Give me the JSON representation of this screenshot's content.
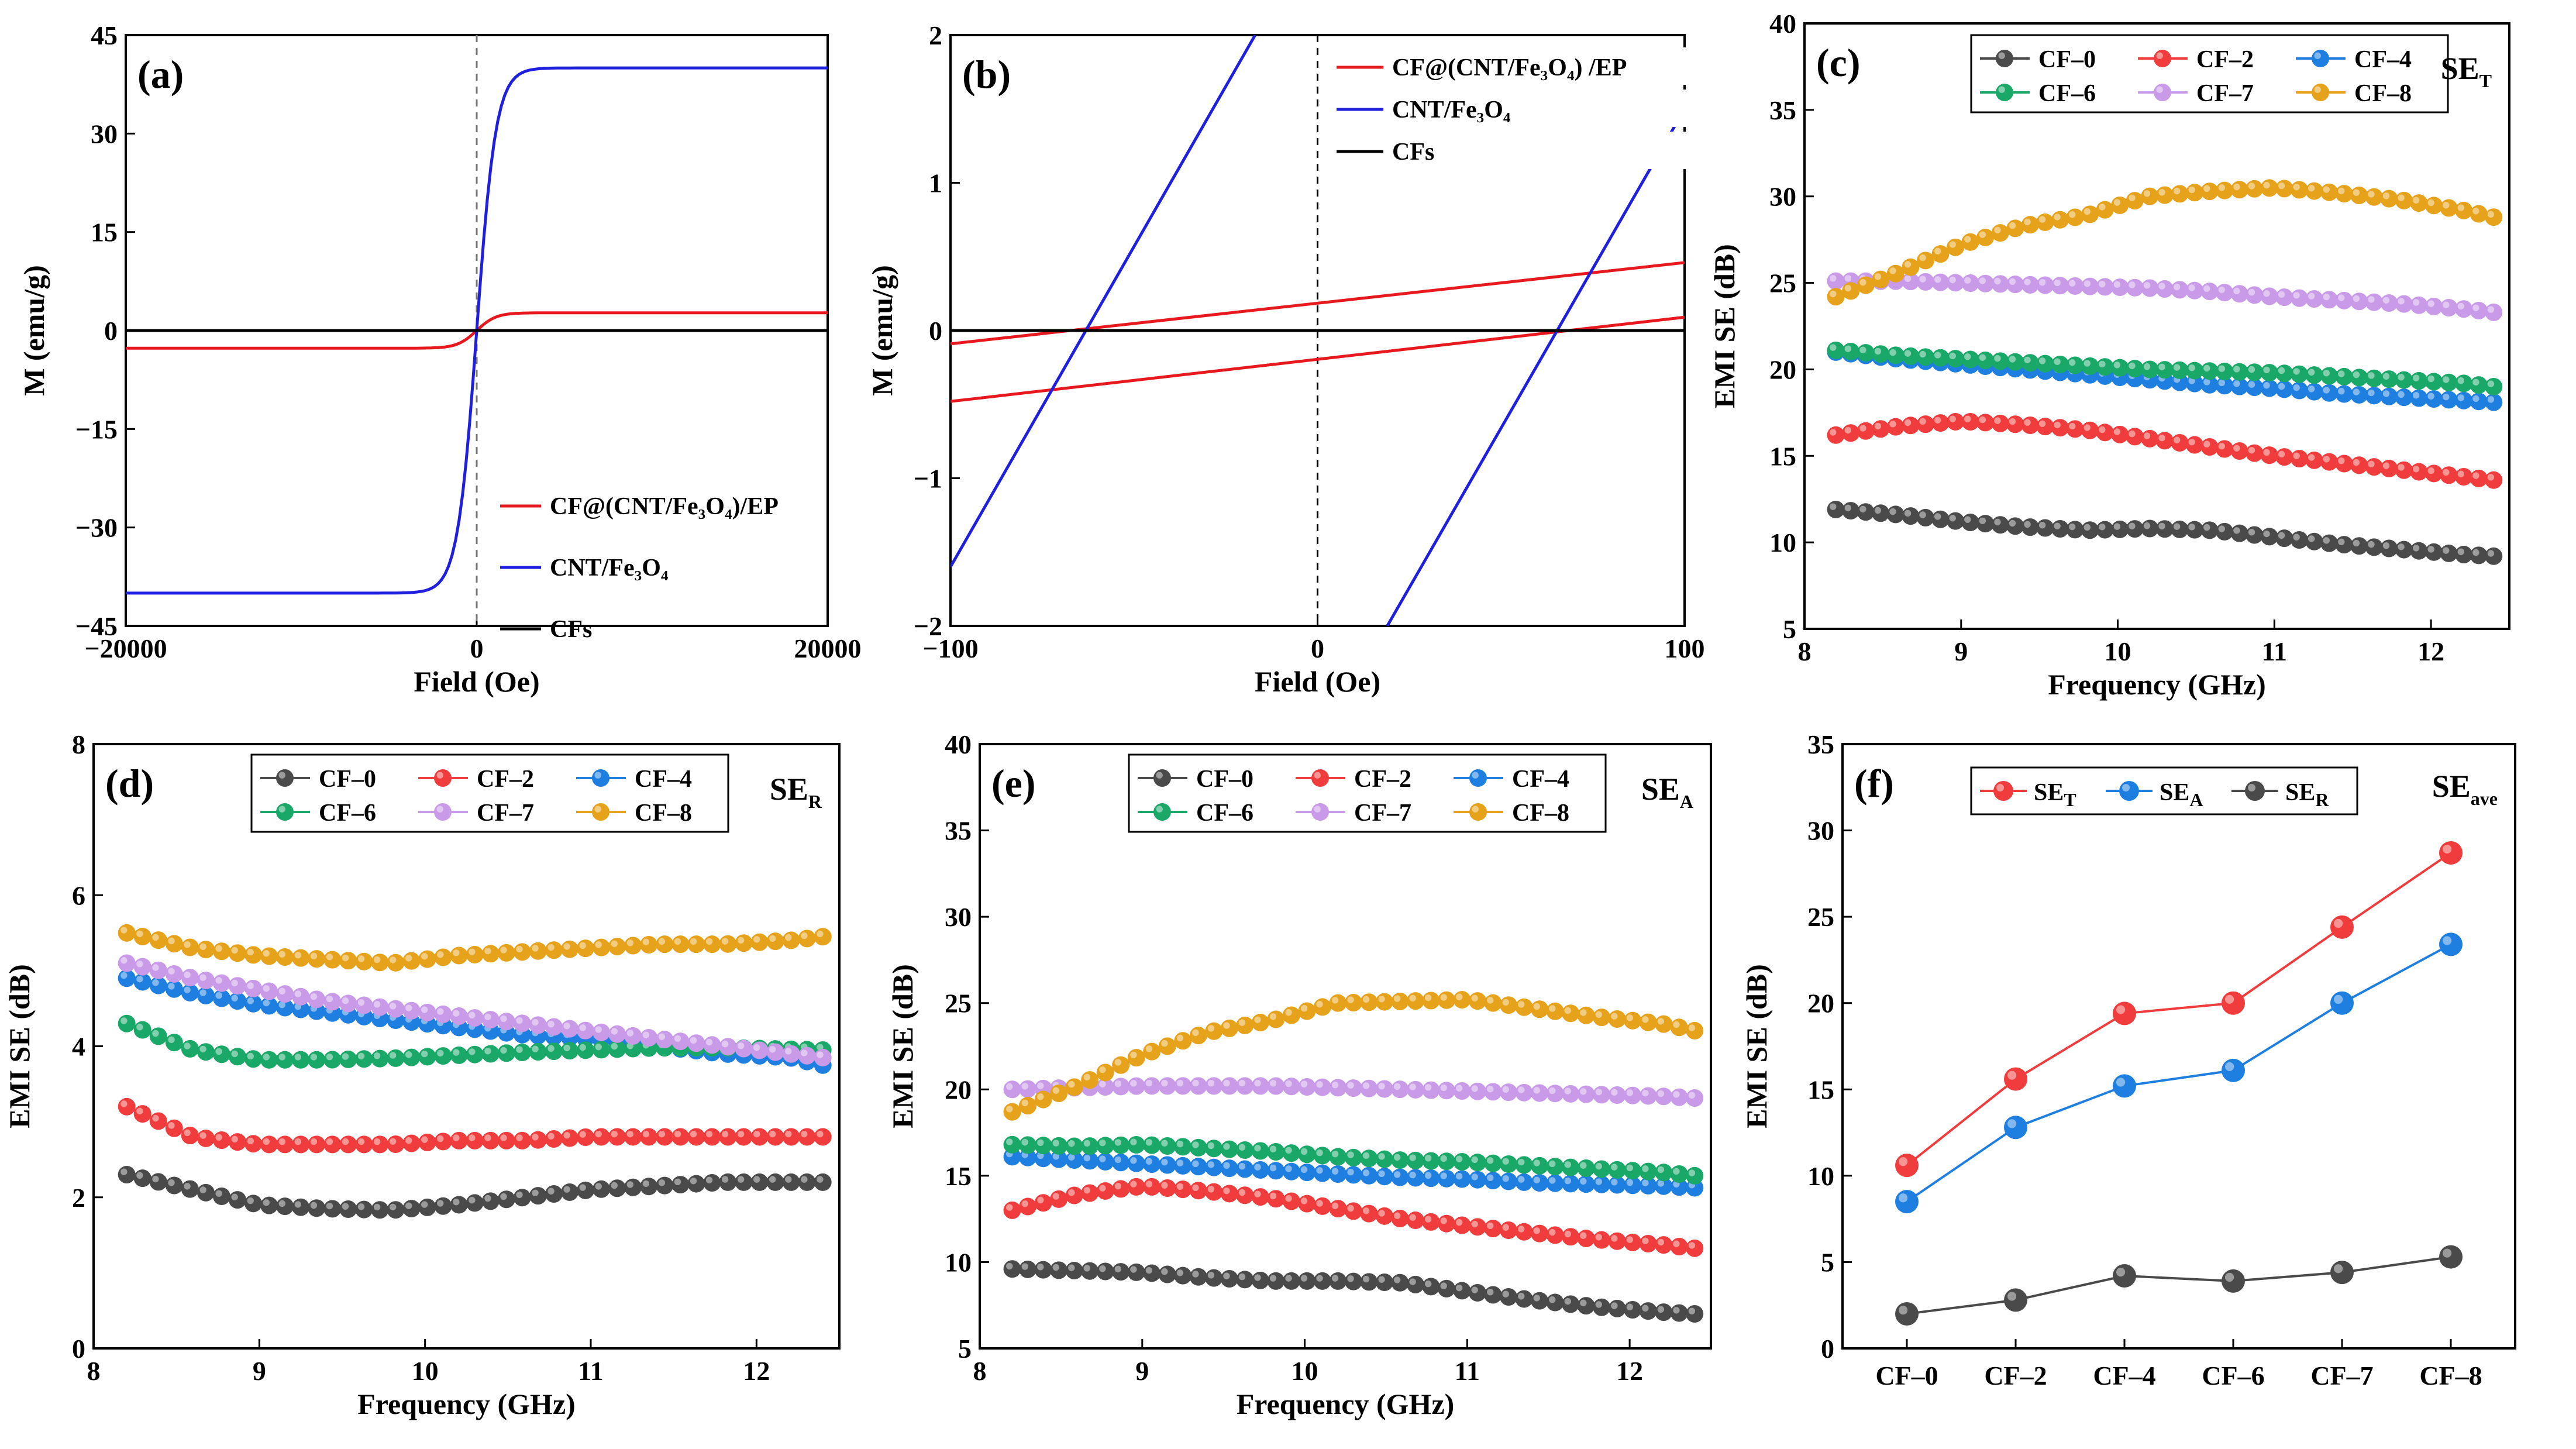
{
  "chart_data": [
    {
      "id": "a",
      "type": "line",
      "label": "(a)",
      "xlabel": "Field (Oe)",
      "ylabel": "M (emu/g)",
      "xlim": [
        -20000,
        20000
      ],
      "ylim": [
        -45,
        45
      ],
      "xticks": [
        -20000,
        0,
        20000
      ],
      "xticklabels": [
        "−20000",
        "0",
        "20000"
      ],
      "yticks": [
        -45,
        -30,
        -15,
        0,
        15,
        30,
        45
      ],
      "yticklabels": [
        "−45",
        "−30",
        "−15",
        "0",
        "15",
        "30",
        "45"
      ],
      "legend": [
        "CF@(CNT/Fe₃O₄)/EP",
        "CNT/Fe₃O₄",
        "CFs"
      ],
      "series": [
        {
          "name": "CF@(CNT/Fe3O4)/EP",
          "color": "#e8191e",
          "Ms": 2.7,
          "scale": 1100
        },
        {
          "name": "CNT/Fe3O4",
          "color": "#1f1fe0",
          "Ms": 40,
          "scale": 1100
        },
        {
          "name": "CFs",
          "color": "#000000",
          "Ms": 0,
          "scale": 1100
        }
      ]
    },
    {
      "id": "b",
      "type": "line",
      "label": "(b)",
      "xlabel": "Field (Oe)",
      "ylabel": "M (emu/g)",
      "xlim": [
        -100,
        100
      ],
      "ylim": [
        -2,
        2
      ],
      "xticks": [
        -100,
        0,
        100
      ],
      "xticklabels": [
        "−100",
        "0",
        "100"
      ],
      "yticks": [
        -2,
        -1,
        0,
        1,
        2
      ],
      "yticklabels": [
        "−2",
        "−1",
        "0",
        "1",
        "2"
      ],
      "legend": [
        "CF@(CNT/Fe₃O₄) /EP",
        "CNT/Fe₃O₄",
        "CFs"
      ],
      "series": [
        {
          "name": "CF@(CNT/Fe3O4)/EP upper",
          "color": "#e8191e",
          "x": [
            -100,
            100
          ],
          "y": [
            -0.09,
            0.46
          ]
        },
        {
          "name": "CF@(CNT/Fe3O4)/EP lower",
          "color": "#e8191e",
          "x": [
            -100,
            100
          ],
          "y": [
            -0.48,
            0.09
          ]
        },
        {
          "name": "CNT/Fe3O4 left",
          "color": "#1f1fe0",
          "x": [
            -100,
            -17
          ],
          "y": [
            -1.6,
            2.0
          ]
        },
        {
          "name": "CNT/Fe3O4 right",
          "color": "#1f1fe0",
          "x": [
            19,
            100
          ],
          "y": [
            -2.0,
            1.5
          ]
        },
        {
          "name": "CFs",
          "color": "#000000",
          "x": [
            -100,
            100
          ],
          "y": [
            0,
            0
          ]
        }
      ]
    },
    {
      "id": "c",
      "type": "line",
      "label": "(c)",
      "tag": "SE",
      "tag_sub": "T",
      "xlabel": "Frequency (GHz)",
      "ylabel": "EMI SE (dB)",
      "xlim": [
        8,
        12.5
      ],
      "ylim": [
        5,
        40
      ],
      "xticks": [
        8,
        9,
        10,
        11,
        12
      ],
      "xticklabels": [
        "8",
        "9",
        "10",
        "11",
        "12"
      ],
      "yticks": [
        5,
        10,
        15,
        20,
        25,
        30,
        35,
        40
      ],
      "yticklabels": [
        "5",
        "10",
        "15",
        "20",
        "25",
        "30",
        "35",
        "40"
      ],
      "x": [
        8.2,
        8.6,
        9.0,
        9.4,
        9.8,
        10.2,
        10.6,
        11.0,
        11.4,
        11.8,
        12.2,
        12.4
      ],
      "series": [
        {
          "name": "CF–0",
          "color": "#4a4a4a",
          "values": [
            11.9,
            11.6,
            11.2,
            10.9,
            10.7,
            10.8,
            10.7,
            10.3,
            9.9,
            9.6,
            9.3,
            9.2
          ]
        },
        {
          "name": "CF–2",
          "color": "#f03c3c",
          "values": [
            16.2,
            16.7,
            17.0,
            16.8,
            16.5,
            16.0,
            15.5,
            15.0,
            14.6,
            14.2,
            13.8,
            13.6
          ]
        },
        {
          "name": "CF–4",
          "color": "#1e7fe0",
          "values": [
            21.0,
            20.6,
            20.3,
            20.0,
            19.7,
            19.4,
            19.1,
            18.9,
            18.6,
            18.4,
            18.2,
            18.1
          ]
        },
        {
          "name": "CF–6",
          "color": "#1aa868",
          "values": [
            21.1,
            20.8,
            20.6,
            20.4,
            20.2,
            20.0,
            19.9,
            19.8,
            19.6,
            19.4,
            19.2,
            19.0
          ]
        },
        {
          "name": "CF–7",
          "color": "#c89ae8",
          "values": [
            25.1,
            25.1,
            25.0,
            24.9,
            24.8,
            24.7,
            24.5,
            24.2,
            24.0,
            23.8,
            23.5,
            23.3
          ]
        },
        {
          "name": "CF–8",
          "color": "#e5a21a",
          "values": [
            24.2,
            25.6,
            27.2,
            28.3,
            28.9,
            30.0,
            30.3,
            30.5,
            30.2,
            29.8,
            29.2,
            28.8
          ]
        }
      ]
    },
    {
      "id": "d",
      "type": "line",
      "label": "(d)",
      "tag": "SE",
      "tag_sub": "R",
      "xlabel": "Frequency (GHz)",
      "ylabel": "EMI SE (dB)",
      "xlim": [
        8,
        12.5
      ],
      "ylim": [
        0,
        8
      ],
      "xticks": [
        8,
        9,
        10,
        11,
        12
      ],
      "xticklabels": [
        "8",
        "9",
        "10",
        "11",
        "12"
      ],
      "yticks": [
        0,
        2,
        4,
        6,
        8
      ],
      "yticklabels": [
        "0",
        "2",
        "4",
        "6",
        "8"
      ],
      "x": [
        8.2,
        8.6,
        9.0,
        9.4,
        9.8,
        10.2,
        10.6,
        11.0,
        11.4,
        11.8,
        12.2,
        12.4
      ],
      "series": [
        {
          "name": "CF–0",
          "color": "#4a4a4a",
          "values": [
            2.3,
            2.1,
            1.9,
            1.85,
            1.83,
            1.9,
            2.0,
            2.1,
            2.15,
            2.2,
            2.2,
            2.2
          ]
        },
        {
          "name": "CF–2",
          "color": "#f03c3c",
          "values": [
            3.2,
            2.8,
            2.7,
            2.7,
            2.7,
            2.75,
            2.75,
            2.8,
            2.8,
            2.8,
            2.8,
            2.8
          ]
        },
        {
          "name": "CF–4",
          "color": "#1e7fe0",
          "values": [
            4.9,
            4.7,
            4.55,
            4.45,
            4.35,
            4.25,
            4.15,
            4.1,
            4.0,
            3.9,
            3.85,
            3.75
          ]
        },
        {
          "name": "CF–6",
          "color": "#1aa868",
          "values": [
            4.3,
            3.95,
            3.82,
            3.82,
            3.84,
            3.88,
            3.92,
            3.95,
            3.98,
            3.98,
            3.96,
            3.95
          ]
        },
        {
          "name": "CF–7",
          "color": "#c89ae8",
          "values": [
            5.1,
            4.9,
            4.75,
            4.6,
            4.5,
            4.4,
            4.3,
            4.2,
            4.1,
            4.0,
            3.9,
            3.85
          ]
        },
        {
          "name": "CF–8",
          "color": "#e5a21a",
          "values": [
            5.5,
            5.3,
            5.2,
            5.15,
            5.1,
            5.2,
            5.25,
            5.3,
            5.35,
            5.35,
            5.4,
            5.45
          ]
        }
      ]
    },
    {
      "id": "e",
      "type": "line",
      "label": "(e)",
      "tag": "SE",
      "tag_sub": "A",
      "xlabel": "Frequency (GHz)",
      "ylabel": "EMI SE (dB)",
      "xlim": [
        8,
        12.5
      ],
      "ylim": [
        5,
        40
      ],
      "xticks": [
        8,
        9,
        10,
        11,
        12
      ],
      "xticklabels": [
        "8",
        "9",
        "10",
        "11",
        "12"
      ],
      "yticks": [
        5,
        10,
        15,
        20,
        25,
        30,
        35,
        40
      ],
      "yticklabels": [
        "5",
        "10",
        "15",
        "20",
        "25",
        "30",
        "35",
        "40"
      ],
      "x": [
        8.2,
        8.6,
        9.0,
        9.4,
        9.8,
        10.2,
        10.6,
        11.0,
        11.4,
        11.8,
        12.2,
        12.4
      ],
      "series": [
        {
          "name": "CF–0",
          "color": "#4a4a4a",
          "values": [
            9.6,
            9.5,
            9.4,
            9.1,
            8.9,
            8.9,
            8.8,
            8.3,
            7.8,
            7.4,
            7.1,
            7.0
          ]
        },
        {
          "name": "CF–2",
          "color": "#f03c3c",
          "values": [
            13.0,
            13.9,
            14.4,
            14.1,
            13.7,
            13.1,
            12.5,
            12.1,
            11.7,
            11.3,
            11.0,
            10.8
          ]
        },
        {
          "name": "CF–4",
          "color": "#1e7fe0",
          "values": [
            16.1,
            15.9,
            15.7,
            15.5,
            15.3,
            15.1,
            14.9,
            14.8,
            14.6,
            14.5,
            14.4,
            14.3
          ]
        },
        {
          "name": "CF–6",
          "color": "#1aa868",
          "values": [
            16.8,
            16.7,
            16.8,
            16.6,
            16.4,
            16.1,
            15.9,
            15.8,
            15.6,
            15.4,
            15.2,
            15.0
          ]
        },
        {
          "name": "CF–7",
          "color": "#c89ae8",
          "values": [
            20.0,
            20.1,
            20.2,
            20.2,
            20.2,
            20.1,
            20.0,
            19.9,
            19.8,
            19.7,
            19.6,
            19.5
          ]
        },
        {
          "name": "CF–8",
          "color": "#e5a21a",
          "values": [
            18.7,
            20.2,
            22.0,
            23.3,
            24.0,
            25.0,
            25.1,
            25.2,
            24.7,
            24.2,
            23.8,
            23.4
          ]
        }
      ]
    },
    {
      "id": "f",
      "type": "line",
      "label": "(f)",
      "tag": "SE",
      "tag_sub": "ave",
      "xlabel": "",
      "ylabel": "EMI SE (dB)",
      "ylim": [
        0,
        35
      ],
      "yticks": [
        0,
        5,
        10,
        15,
        20,
        25,
        30,
        35
      ],
      "yticklabels": [
        "0",
        "5",
        "10",
        "15",
        "20",
        "25",
        "30",
        "35"
      ],
      "categories": [
        "CF–0",
        "CF–2",
        "CF–4",
        "CF–6",
        "CF–7",
        "CF–8"
      ],
      "series": [
        {
          "name": "SE",
          "sub": "T",
          "color": "#f03c3c",
          "values": [
            10.6,
            15.6,
            19.4,
            20.0,
            24.4,
            28.7
          ]
        },
        {
          "name": "SE",
          "sub": "A",
          "color": "#1e7fe0",
          "values": [
            8.5,
            12.8,
            15.2,
            16.1,
            20.0,
            23.4
          ]
        },
        {
          "name": "SE",
          "sub": "R",
          "color": "#4a4a4a",
          "values": [
            2.0,
            2.8,
            4.2,
            3.9,
            4.4,
            5.3
          ]
        }
      ]
    }
  ]
}
